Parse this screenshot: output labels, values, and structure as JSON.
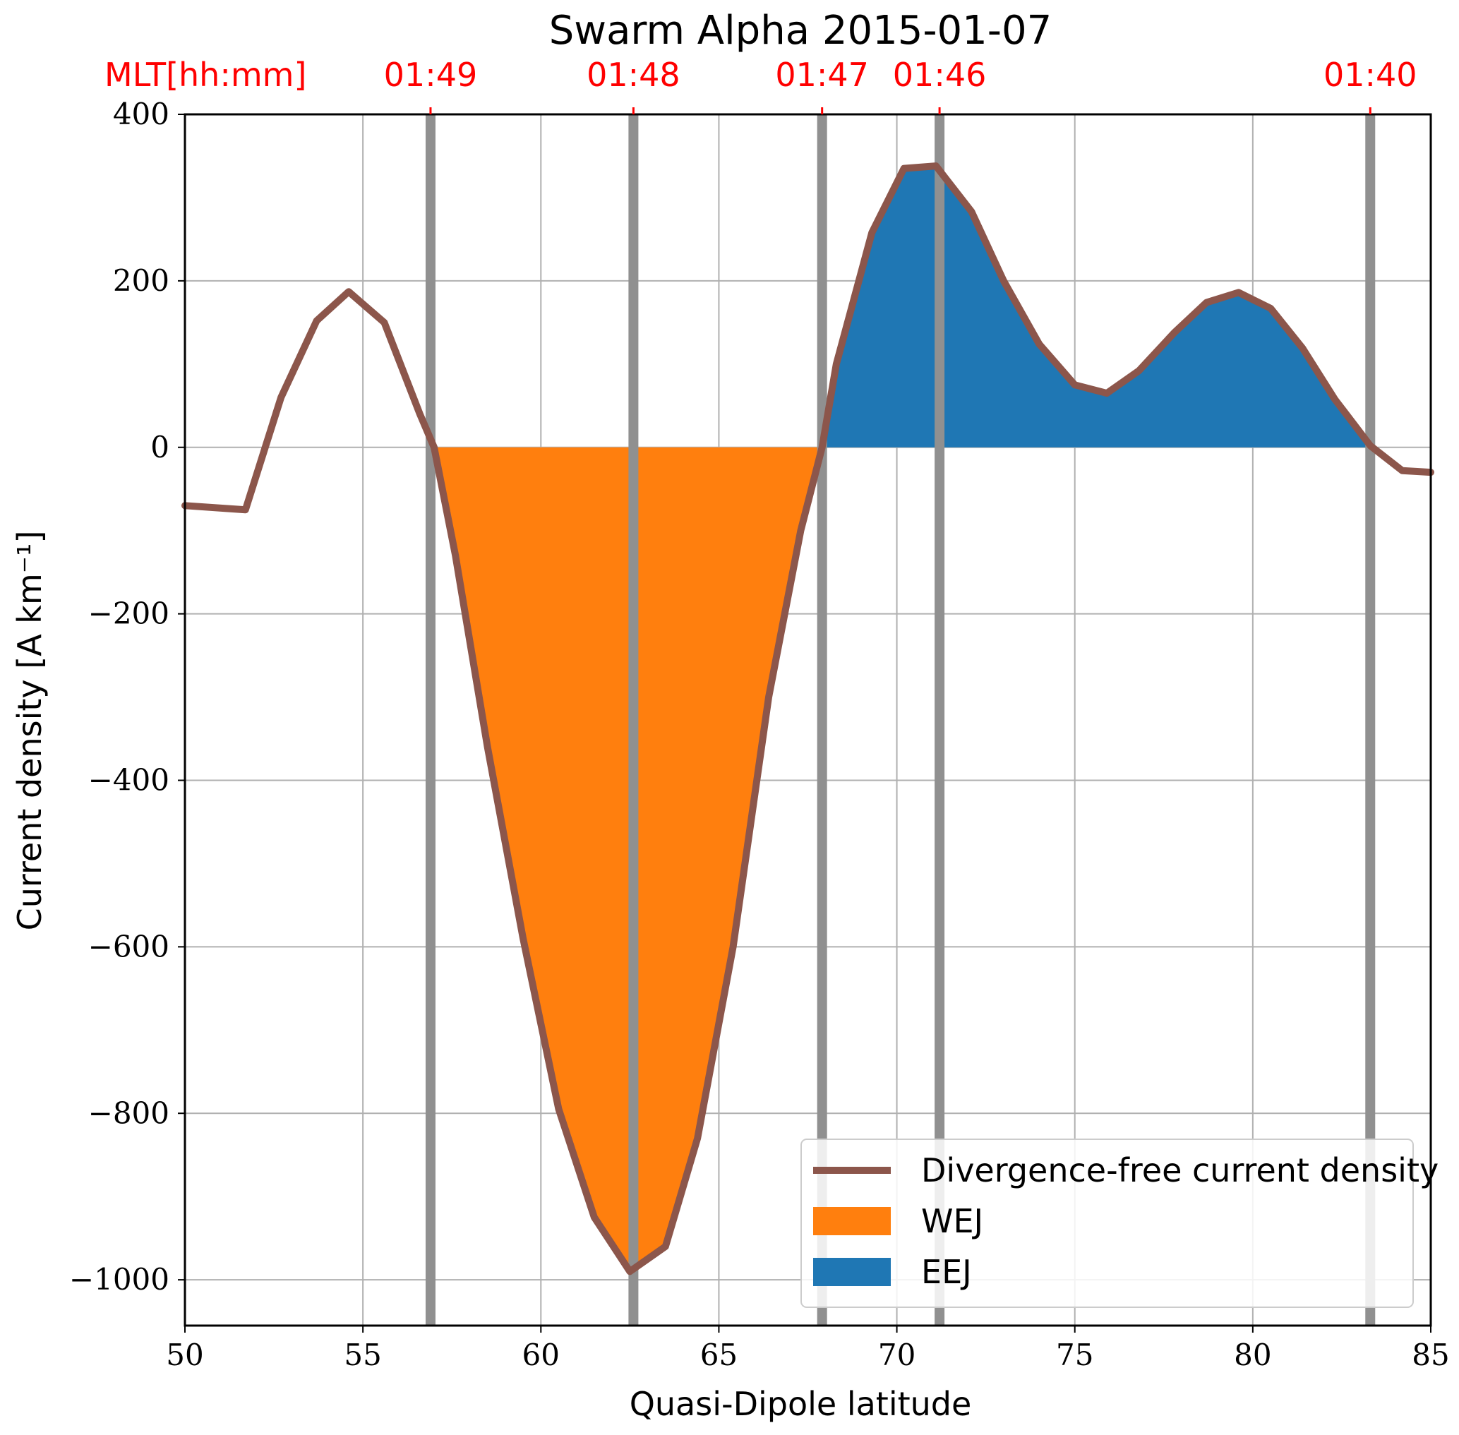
{
  "chart_data": {
    "type": "area",
    "title": "Swarm Alpha 2015-01-07",
    "xlabel": "Quasi-Dipole latitude",
    "ylabel": "Current density [A km⁻¹]",
    "xlim": [
      50,
      85
    ],
    "ylim": [
      -1055,
      400
    ],
    "grid": true,
    "x_ticks": [
      50,
      55,
      60,
      65,
      70,
      75,
      80,
      85
    ],
    "x_tick_labels": [
      "50",
      "55",
      "60",
      "65",
      "70",
      "75",
      "80",
      "85"
    ],
    "y_ticks": [
      -1000,
      -800,
      -600,
      -400,
      -200,
      0,
      200,
      400
    ],
    "y_tick_labels": [
      "−1000",
      "−800",
      "−600",
      "−400",
      "−200",
      "0",
      "200",
      "400"
    ],
    "top_axis": {
      "label": "MLT[hh:mm]",
      "color": "#ff0000",
      "ticks": [
        {
          "lat": 56.9,
          "label": "01:49"
        },
        {
          "lat": 62.6,
          "label": "01:48"
        },
        {
          "lat": 67.9,
          "label": "01:47"
        },
        {
          "lat": 71.2,
          "label": "01:46"
        },
        {
          "lat": 83.3,
          "label": "01:40"
        }
      ]
    },
    "boundary_lines": [
      56.9,
      62.6,
      67.9,
      71.2,
      83.3
    ],
    "boundary_color": "#909090",
    "series": [
      {
        "name": "Divergence-free current density",
        "color": "#8c564b",
        "x": [
          50.0,
          51.7,
          52.7,
          53.7,
          54.6,
          55.6,
          56.6,
          57.0,
          57.6,
          58.5,
          59.5,
          60.5,
          61.5,
          62.5,
          63.5,
          64.4,
          65.4,
          66.4,
          67.3,
          67.9,
          68.3,
          69.3,
          70.2,
          71.1,
          72.1,
          73.0,
          74.0,
          75.0,
          75.9,
          76.8,
          77.8,
          78.7,
          79.6,
          80.5,
          81.4,
          82.3,
          83.3,
          84.2,
          85.0
        ],
        "y": [
          -70,
          -75,
          60,
          152,
          187,
          150,
          40,
          0,
          -130,
          -360,
          -590,
          -795,
          -925,
          -990,
          -960,
          -830,
          -600,
          -300,
          -100,
          0,
          100,
          258,
          335,
          338,
          283,
          200,
          124,
          75,
          65,
          92,
          138,
          174,
          186,
          167,
          119,
          58,
          2,
          -28,
          -30
        ]
      },
      {
        "name": "WEJ",
        "color": "#ff7f0e",
        "type": "fill",
        "range": [
          57.0,
          67.9
        ]
      },
      {
        "name": "EEJ",
        "color": "#1f77b4",
        "type": "fill",
        "range": [
          67.9,
          83.3
        ]
      }
    ],
    "legend": {
      "location": "lower right",
      "entries": [
        "Divergence-free current density",
        "WEJ",
        "EEJ"
      ]
    }
  }
}
